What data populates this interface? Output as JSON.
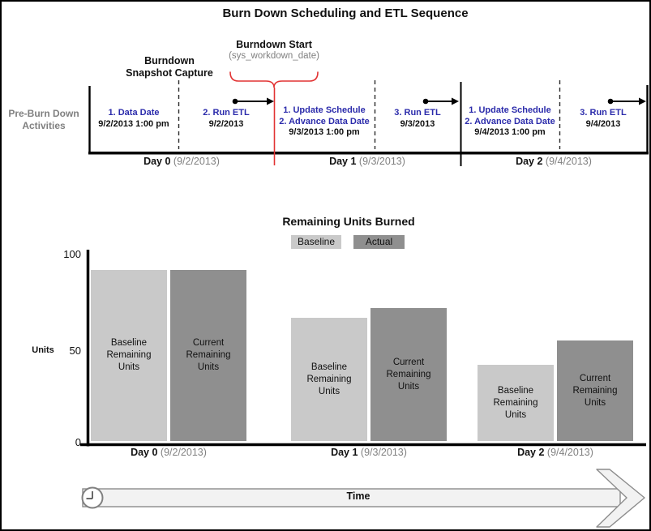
{
  "page_title": "Burn Down Scheduling and ETL Sequence",
  "timeline": {
    "side_label": "Pre-Burn Down\nActivities",
    "snapshot_label": "Burndown\nSnapshot Capture",
    "burndown_start": {
      "label": "Burndown Start",
      "sublabel": "(sys_workdown_date)"
    },
    "events": [
      {
        "line1": "1. Data Date",
        "date": "9/2/2013 1:00 pm"
      },
      {
        "line1": "2. Run ETL",
        "date": "9/2/2013"
      },
      {
        "line1": "1. Update Schedule",
        "line2": "2. Advance Data Date",
        "date": "9/3/2013 1:00 pm"
      },
      {
        "line1": "3. Run ETL",
        "date": "9/3/2013"
      },
      {
        "line1": "1. Update Schedule",
        "line2": "2. Advance Data Date",
        "date": "9/4/2013 1:00 pm"
      },
      {
        "line1": "3. Run ETL",
        "date": "9/4/2013"
      }
    ],
    "days": [
      {
        "name": "Day 0",
        "date": "(9/2/2013)"
      },
      {
        "name": "Day 1",
        "date": "(9/3/2013)"
      },
      {
        "name": "Day 2",
        "date": "(9/4/2013)"
      }
    ],
    "colors": {
      "event_text": "#2b2bab",
      "marker": "#e23333",
      "muted_text": "#808080"
    }
  },
  "chart_data": {
    "type": "bar",
    "title": "Remaining Units Burned",
    "xlabel": "",
    "ylabel": "Units",
    "ylim": [
      0,
      100
    ],
    "yticks": [
      "100",
      "50",
      "0"
    ],
    "grid": false,
    "legend_position": "top",
    "categories": [
      "Day 0 (9/2/2013)",
      "Day 1 (9/3/2013)",
      "Day 2 (9/4/2013)"
    ],
    "xlabels": [
      {
        "name": "Day 0",
        "date": "(9/2/2013)"
      },
      {
        "name": "Day 1",
        "date": "(9/3/2013)"
      },
      {
        "name": "Day 2",
        "date": "(9/4/2013)"
      }
    ],
    "series": [
      {
        "name": "Baseline",
        "color": "#c9c9c9",
        "values": [
          90,
          65,
          40
        ],
        "bar_label": "Baseline\nRemaining\nUnits"
      },
      {
        "name": "Actual",
        "color": "#8f8f8f",
        "values": [
          90,
          70,
          53
        ],
        "bar_label": "Current\nRemaining\nUnits"
      }
    ]
  },
  "time_arrow": {
    "label": "Time"
  }
}
